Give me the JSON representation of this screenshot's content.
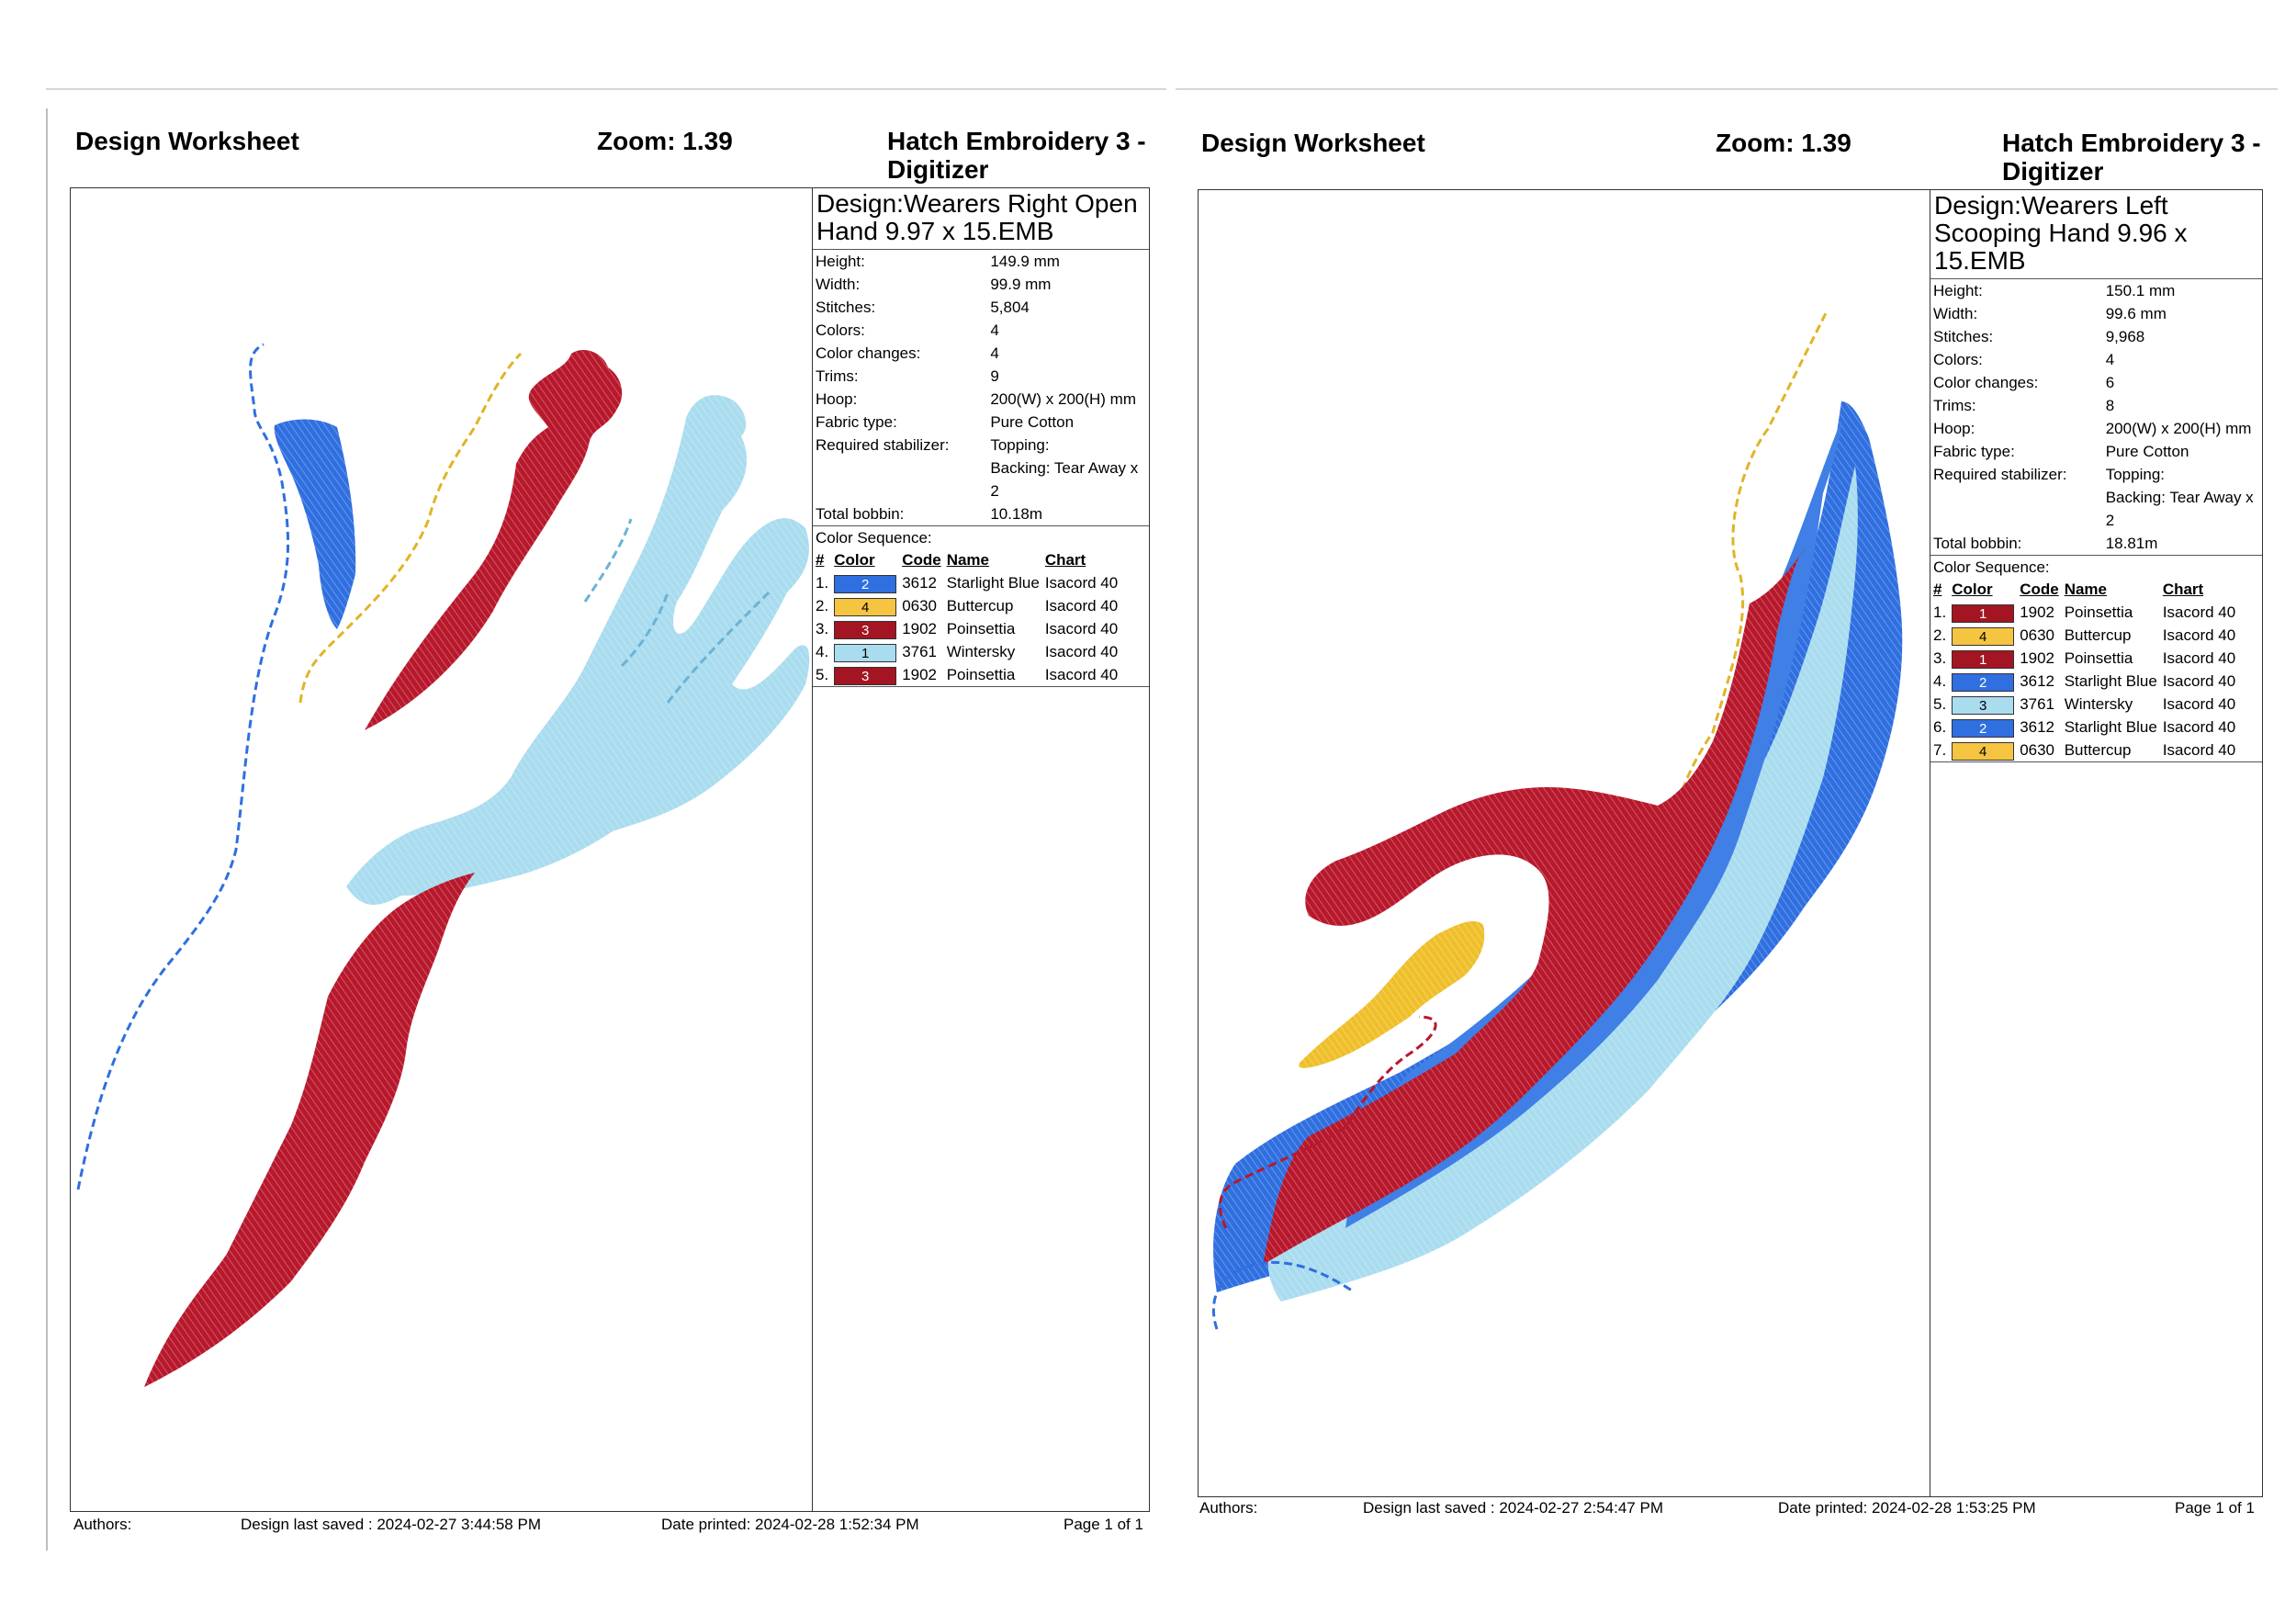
{
  "worksheets": [
    {
      "title": "Design Worksheet",
      "zoom_label": "Zoom:  1.39",
      "app": "Hatch Embroidery 3 - Digitizer",
      "design": "Design:Wearers Right Open Hand 9.97 x 15.EMB",
      "props": [
        {
          "label": "Height:",
          "value": "149.9 mm"
        },
        {
          "label": "Width:",
          "value": "99.9 mm"
        },
        {
          "label": "Stitches:",
          "value": "5,804"
        },
        {
          "label": "Colors:",
          "value": "4"
        },
        {
          "label": "Color changes:",
          "value": "4"
        },
        {
          "label": "Trims:",
          "value": "9"
        },
        {
          "label": "Hoop:",
          "value": "200(W) x 200(H) mm"
        },
        {
          "label": "Fabric type:",
          "value": "Pure Cotton"
        },
        {
          "label": "Required stabilizer:",
          "value": "Topping:",
          "value2": "Backing: Tear Away x 2"
        },
        {
          "label": "Total bobbin:",
          "value": "10.18m"
        }
      ],
      "seq_title": "Color Sequence:",
      "seq_headers": [
        "#",
        "Color",
        "Code",
        "Name",
        "Chart"
      ],
      "seq": [
        {
          "n": "1.",
          "swatch": "2",
          "hex": "#2f6fe0",
          "code": "3612",
          "name": "Starlight Blue",
          "chart": "Isacord 40"
        },
        {
          "n": "2.",
          "swatch": "4",
          "hex": "#f5c542",
          "code": "0630",
          "name": "Buttercup",
          "chart": "Isacord 40"
        },
        {
          "n": "3.",
          "swatch": "3",
          "hex": "#a31522",
          "code": "1902",
          "name": "Poinsettia",
          "chart": "Isacord 40"
        },
        {
          "n": "4.",
          "swatch": "1",
          "hex": "#a9dcef",
          "code": "3761",
          "name": "Wintersky",
          "chart": "Isacord 40"
        },
        {
          "n": "5.",
          "swatch": "3",
          "hex": "#a31522",
          "code": "1902",
          "name": "Poinsettia",
          "chart": "Isacord 40"
        }
      ],
      "footer": {
        "authors": "Authors:",
        "saved": "Design last saved : 2024-02-27 3:44:58 PM",
        "printed": "Date printed: 2024-02-28 1:52:34 PM",
        "page": "Page 1 of 1"
      }
    },
    {
      "title": "Design Worksheet",
      "zoom_label": "Zoom:  1.39",
      "app": "Hatch Embroidery 3 - Digitizer",
      "design": "Design:Wearers Left Scooping Hand 9.96 x 15.EMB",
      "props": [
        {
          "label": "Height:",
          "value": "150.1 mm"
        },
        {
          "label": "Width:",
          "value": "99.6 mm"
        },
        {
          "label": "Stitches:",
          "value": "9,968"
        },
        {
          "label": "Colors:",
          "value": "4"
        },
        {
          "label": "Color changes:",
          "value": "6"
        },
        {
          "label": "Trims:",
          "value": "8"
        },
        {
          "label": "Hoop:",
          "value": "200(W) x 200(H) mm"
        },
        {
          "label": "Fabric type:",
          "value": "Pure Cotton"
        },
        {
          "label": "Required stabilizer:",
          "value": "Topping:",
          "value2": "Backing: Tear Away x 2"
        },
        {
          "label": "Total bobbin:",
          "value": "18.81m"
        }
      ],
      "seq_title": "Color Sequence:",
      "seq_headers": [
        "#",
        "Color",
        "Code",
        "Name",
        "Chart"
      ],
      "seq": [
        {
          "n": "1.",
          "swatch": "1",
          "hex": "#a31522",
          "code": "1902",
          "name": "Poinsettia",
          "chart": "Isacord 40"
        },
        {
          "n": "2.",
          "swatch": "4",
          "hex": "#f5c542",
          "code": "0630",
          "name": "Buttercup",
          "chart": "Isacord 40"
        },
        {
          "n": "3.",
          "swatch": "1",
          "hex": "#a31522",
          "code": "1902",
          "name": "Poinsettia",
          "chart": "Isacord 40"
        },
        {
          "n": "4.",
          "swatch": "2",
          "hex": "#2f6fe0",
          "code": "3612",
          "name": "Starlight Blue",
          "chart": "Isacord 40"
        },
        {
          "n": "5.",
          "swatch": "3",
          "hex": "#a9dcef",
          "code": "3761",
          "name": "Wintersky",
          "chart": "Isacord 40"
        },
        {
          "n": "6.",
          "swatch": "2",
          "hex": "#2f6fe0",
          "code": "3612",
          "name": "Starlight Blue",
          "chart": "Isacord 40"
        },
        {
          "n": "7.",
          "swatch": "4",
          "hex": "#f5c542",
          "code": "0630",
          "name": "Buttercup",
          "chart": "Isacord 40"
        }
      ],
      "footer": {
        "authors": "Authors:",
        "saved": "Design last saved : 2024-02-27 2:54:47 PM",
        "printed": "Date printed: 2024-02-28 1:53:25 PM",
        "page": "Page 1 of 1"
      }
    }
  ]
}
